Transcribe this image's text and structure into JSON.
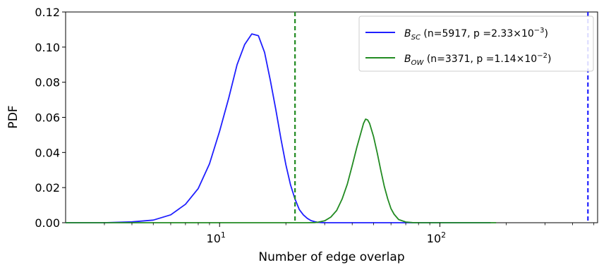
{
  "chart_data": {
    "type": "line",
    "xlabel": "Number of edge overlap",
    "ylabel": "PDF",
    "xscale": "log",
    "xlim": [
      2,
      520
    ],
    "ylim": [
      0,
      0.12
    ],
    "grid": false,
    "legend_position": "top-right",
    "y_ticks": [
      "0.00",
      "0.02",
      "0.04",
      "0.06",
      "0.08",
      "0.10",
      "0.12"
    ],
    "x_ticks": [
      {
        "value": 10,
        "base": "10",
        "exponent": "1"
      },
      {
        "value": 100,
        "base": "10",
        "exponent": "2"
      }
    ],
    "series": [
      {
        "name": "B_SC",
        "legend": {
          "symbol": "B",
          "subscript": "SC",
          "text_before": " (n=5917, p =2.33×10",
          "exponent": "−3",
          "text_after": ")"
        },
        "color": "#1f1fff",
        "x": [
          2,
          3,
          4,
          5,
          6,
          7,
          8,
          9,
          10,
          11,
          12,
          13,
          14,
          15,
          16,
          17,
          18,
          19,
          20,
          21,
          22,
          23,
          24,
          25,
          26,
          27,
          28,
          29,
          30,
          35,
          40,
          60,
          100,
          170
        ],
        "y": [
          0,
          0,
          0.0005,
          0.0015,
          0.0045,
          0.0105,
          0.0195,
          0.0335,
          0.052,
          0.071,
          0.09,
          0.1015,
          0.1075,
          0.1065,
          0.097,
          0.081,
          0.0645,
          0.0475,
          0.033,
          0.0215,
          0.0135,
          0.0075,
          0.0045,
          0.0025,
          0.0012,
          0.0006,
          0.0002,
          0.0001,
          0,
          0,
          0,
          0,
          0,
          0
        ],
        "vline": 470
      },
      {
        "name": "B_OW",
        "legend": {
          "symbol": "B",
          "subscript": "OW",
          "text_before": " (n=3371, p =1.14×10",
          "exponent": "−2",
          "text_after": ")"
        },
        "color": "#228b22",
        "x": [
          2,
          10,
          20,
          25,
          27,
          28,
          30,
          32,
          34,
          36,
          38,
          40,
          42,
          44,
          45,
          46,
          47,
          48,
          50,
          52,
          54,
          56,
          58,
          60,
          62,
          65,
          70,
          75,
          80,
          100,
          180
        ],
        "y": [
          0,
          0,
          0,
          0,
          0.0001,
          0.0003,
          0.0011,
          0.0032,
          0.007,
          0.0135,
          0.022,
          0.0325,
          0.043,
          0.052,
          0.0565,
          0.059,
          0.0585,
          0.0565,
          0.049,
          0.0395,
          0.0295,
          0.0205,
          0.0135,
          0.008,
          0.0048,
          0.0018,
          0.0004,
          0.0001,
          0,
          0,
          0
        ],
        "vline": 22
      }
    ]
  }
}
